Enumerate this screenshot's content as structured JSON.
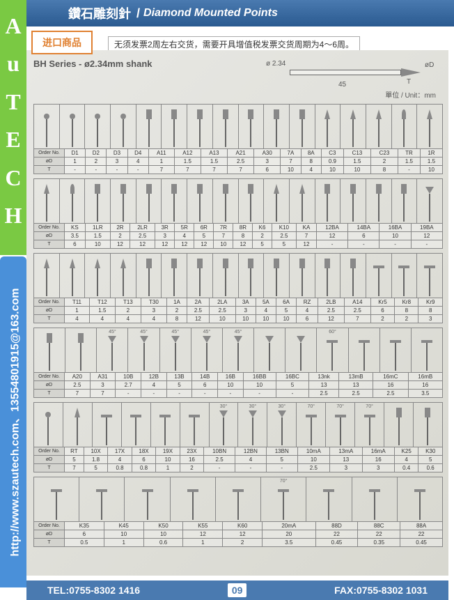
{
  "brand": {
    "letters": [
      "A",
      "u",
      "T",
      "E",
      "C",
      "H"
    ]
  },
  "contact": "http://www.szautech.com、13554801915@163.com",
  "header": {
    "zh": "鑽石雕刻針",
    "sep": "/",
    "en": "Diamond Mounted Points"
  },
  "import_badge": "进口商品",
  "import_note": "无须发票2周左右交货，需要开具增值税发票交货周期为4～6周。",
  "series_title": "BH Series - ø2.34mm shank",
  "diagram": {
    "d234": "ø 2.34",
    "len": "45",
    "t": "T",
    "od": "øD"
  },
  "unit": "單位 / Unit：mm",
  "row_labels": [
    "Order No.",
    "øD",
    "T"
  ],
  "sections": [
    {
      "shapes": [
        "ball",
        "ball",
        "ball",
        "ball",
        "cyl",
        "cyl",
        "cyl",
        "cyl",
        "cyl",
        "cyl",
        "cyl",
        "cone",
        "cone",
        "cone",
        "flame",
        "cone"
      ],
      "angles": [],
      "cols": [
        "D1",
        "D2",
        "D3",
        "D4",
        "A11",
        "A12",
        "A13",
        "A21",
        "A30",
        "7A",
        "8A",
        "C3",
        "C13",
        "C23",
        "TR",
        "1R"
      ],
      "od": [
        "1",
        "2",
        "3",
        "4",
        "1",
        "1.5",
        "1.5",
        "2.5",
        "3",
        "7",
        "8",
        "0.9",
        "1.5",
        "2",
        "1.5",
        "1.5"
      ],
      "t": [
        "-",
        "-",
        "-",
        "-",
        "7",
        "7",
        "7",
        "7",
        "6",
        "10",
        "4",
        "10",
        "10",
        "8",
        "-",
        "10"
      ]
    },
    {
      "shapes": [
        "cone",
        "flame",
        "cyl",
        "cyl",
        "cyl",
        "cyl",
        "cyl",
        "cyl",
        "cyl",
        "cone",
        "cone",
        "cyl",
        "cyl",
        "cyl",
        "cyl",
        "invcone"
      ],
      "angles": [],
      "cols": [
        "KS",
        "1LR",
        "2R",
        "2LR",
        "3R",
        "5R",
        "6R",
        "7R",
        "8R",
        "K6",
        "K10",
        "KA",
        "12BA",
        "14BA",
        "16BA",
        "19BA"
      ],
      "od": [
        "3.5",
        "1.5",
        "2",
        "2.5",
        "3",
        "4",
        "5",
        "7",
        "8",
        "2",
        "2.5",
        "7",
        "12",
        "6",
        "10",
        "12"
      ],
      "t": [
        "6",
        "10",
        "12",
        "12",
        "12",
        "12",
        "12",
        "10",
        "12",
        "5",
        "5",
        "12",
        "-",
        "-",
        "-",
        "-"
      ]
    },
    {
      "shapes": [
        "cone",
        "cone",
        "cone",
        "cone",
        "cyl",
        "cyl",
        "cyl",
        "cyl",
        "cyl",
        "cyl",
        "cyl",
        "cyl",
        "cyl",
        "disc",
        "disc",
        "disc"
      ],
      "angles": [],
      "cols": [
        "T11",
        "T12",
        "T13",
        "T30",
        "1A",
        "2A",
        "2LA",
        "3A",
        "5A",
        "6A",
        "RZ",
        "2LB",
        "A14",
        "Kr5",
        "Kr8",
        "Kr9"
      ],
      "od": [
        "1",
        "1.5",
        "2",
        "3",
        "2",
        "2.5",
        "2.5",
        "3",
        "4",
        "5",
        "4",
        "2.5",
        "2.5",
        "6",
        "8",
        "8"
      ],
      "t": [
        "4",
        "4",
        "4",
        "4",
        "8",
        "12",
        "10",
        "10",
        "10",
        "10",
        "6",
        "12",
        "7",
        "2",
        "2",
        "3"
      ]
    },
    {
      "shapes": [
        "cyl",
        "cyl",
        "invcone",
        "invcone",
        "invcone",
        "invcone",
        "invcone",
        "invcone",
        "invcone",
        "disc",
        "disc",
        "disc",
        "disc"
      ],
      "angles": [
        "",
        "",
        "45°",
        "45°",
        "45°",
        "45°",
        "45°",
        "",
        "",
        "60°",
        "",
        "",
        ""
      ],
      "cols": [
        "A20",
        "A31",
        "10B",
        "12B",
        "13B",
        "14B",
        "16B",
        "16BB",
        "16BC",
        "13nk",
        "13mB",
        "16mC",
        "16mB"
      ],
      "od": [
        "2.5",
        "3",
        "2.7",
        "4",
        "5",
        "6",
        "10",
        "10",
        "5",
        "13",
        "13",
        "16",
        "16"
      ],
      "t": [
        "7",
        "7",
        "-",
        "-",
        "-",
        "-",
        "-",
        "-",
        "-",
        "2.5",
        "2.5",
        "2.5",
        "3.5"
      ]
    },
    {
      "shapes": [
        "ball",
        "cone",
        "disc",
        "disc",
        "disc",
        "disc",
        "invcone",
        "invcone",
        "invcone",
        "disc",
        "disc",
        "disc",
        "cyl",
        "cyl"
      ],
      "angles": [
        "",
        "",
        "",
        "",
        "",
        "",
        "30°",
        "30°",
        "30°",
        "70°",
        "70°",
        "70°",
        "",
        ""
      ],
      "cols": [
        "RT",
        "10X",
        "17X",
        "18X",
        "19X",
        "23X",
        "10BN",
        "12BN",
        "13BN",
        "10mA",
        "13mA",
        "16mA",
        "K25",
        "K30"
      ],
      "od": [
        "5",
        "1.8",
        "4",
        "6",
        "10",
        "16",
        "2.5",
        "4",
        "5",
        "10",
        "13",
        "16",
        "4",
        "5"
      ],
      "t": [
        "7",
        "5",
        "0.8",
        "0.8",
        "1",
        "2",
        "-",
        "-",
        "-",
        "2.5",
        "3",
        "3",
        "0.4",
        "0.6"
      ]
    },
    {
      "shapes": [
        "disc",
        "disc",
        "disc",
        "disc",
        "disc",
        "disc",
        "disc",
        "disc",
        "disc"
      ],
      "angles": [
        "",
        "",
        "",
        "",
        "",
        "70°",
        "",
        "",
        ""
      ],
      "cols": [
        "K35",
        "K45",
        "K50",
        "K55",
        "K60",
        "20mA",
        "88D",
        "88C",
        "88A"
      ],
      "od": [
        "6",
        "10",
        "10",
        "12",
        "12",
        "20",
        "22",
        "22",
        "22"
      ],
      "t": [
        "0.5",
        "1",
        "0.6",
        "1",
        "2",
        "3.5",
        "0.45",
        "0.35",
        "0.45"
      ]
    }
  ],
  "footer": {
    "tel": "TEL:0755-8302 1416",
    "page": "09",
    "fax": "FAX:0755-8302 1031"
  }
}
